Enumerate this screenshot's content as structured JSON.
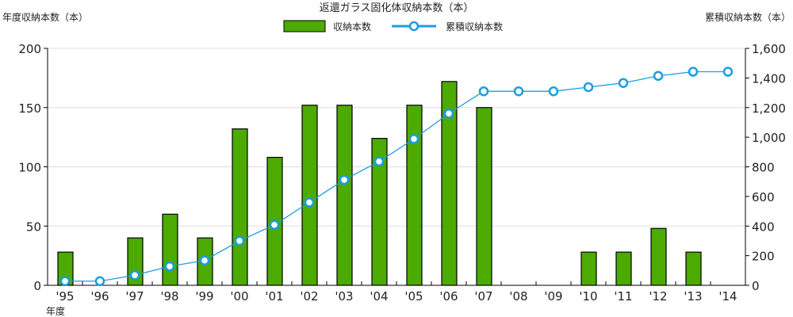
{
  "chart_data": {
    "type": "bar+line",
    "title": "返還ガラス固化体収納本数（本）",
    "ylabel_left": "年度収納本数（本）",
    "ylabel_right": "累積収納本数（本）",
    "xlabel": "年度",
    "categories": [
      "'95",
      "'96",
      "'97",
      "'98",
      "'99",
      "'00",
      "'01",
      "'02",
      "'03",
      "'04",
      "'05",
      "'06",
      "'07",
      "'08",
      "'09",
      "'10",
      "'11",
      "'12",
      "'13",
      "'14"
    ],
    "series": [
      {
        "name": "収納本数",
        "type": "bar",
        "axis": "left",
        "color": "#4caa00",
        "values": [
          28,
          0,
          40,
          60,
          40,
          132,
          108,
          152,
          152,
          124,
          152,
          172,
          150,
          0,
          0,
          28,
          28,
          48,
          28,
          0
        ]
      },
      {
        "name": "累積収納本数",
        "type": "line",
        "axis": "right",
        "color": "#1a9ee0",
        "values": [
          28,
          28,
          68,
          128,
          168,
          300,
          408,
          560,
          712,
          836,
          988,
          1160,
          1310,
          1310,
          1310,
          1338,
          1366,
          1414,
          1442,
          1442
        ]
      }
    ],
    "ylim_left": [
      0,
      200
    ],
    "yticks_left": [
      "0",
      "50",
      "100",
      "150",
      "200"
    ],
    "ylim_right": [
      0,
      1600
    ],
    "yticks_right": [
      "0",
      "200",
      "400",
      "600",
      "800",
      "1,000",
      "1,200",
      "1,400",
      "1,600"
    ],
    "grid": true,
    "legend_placement": "top-center"
  }
}
